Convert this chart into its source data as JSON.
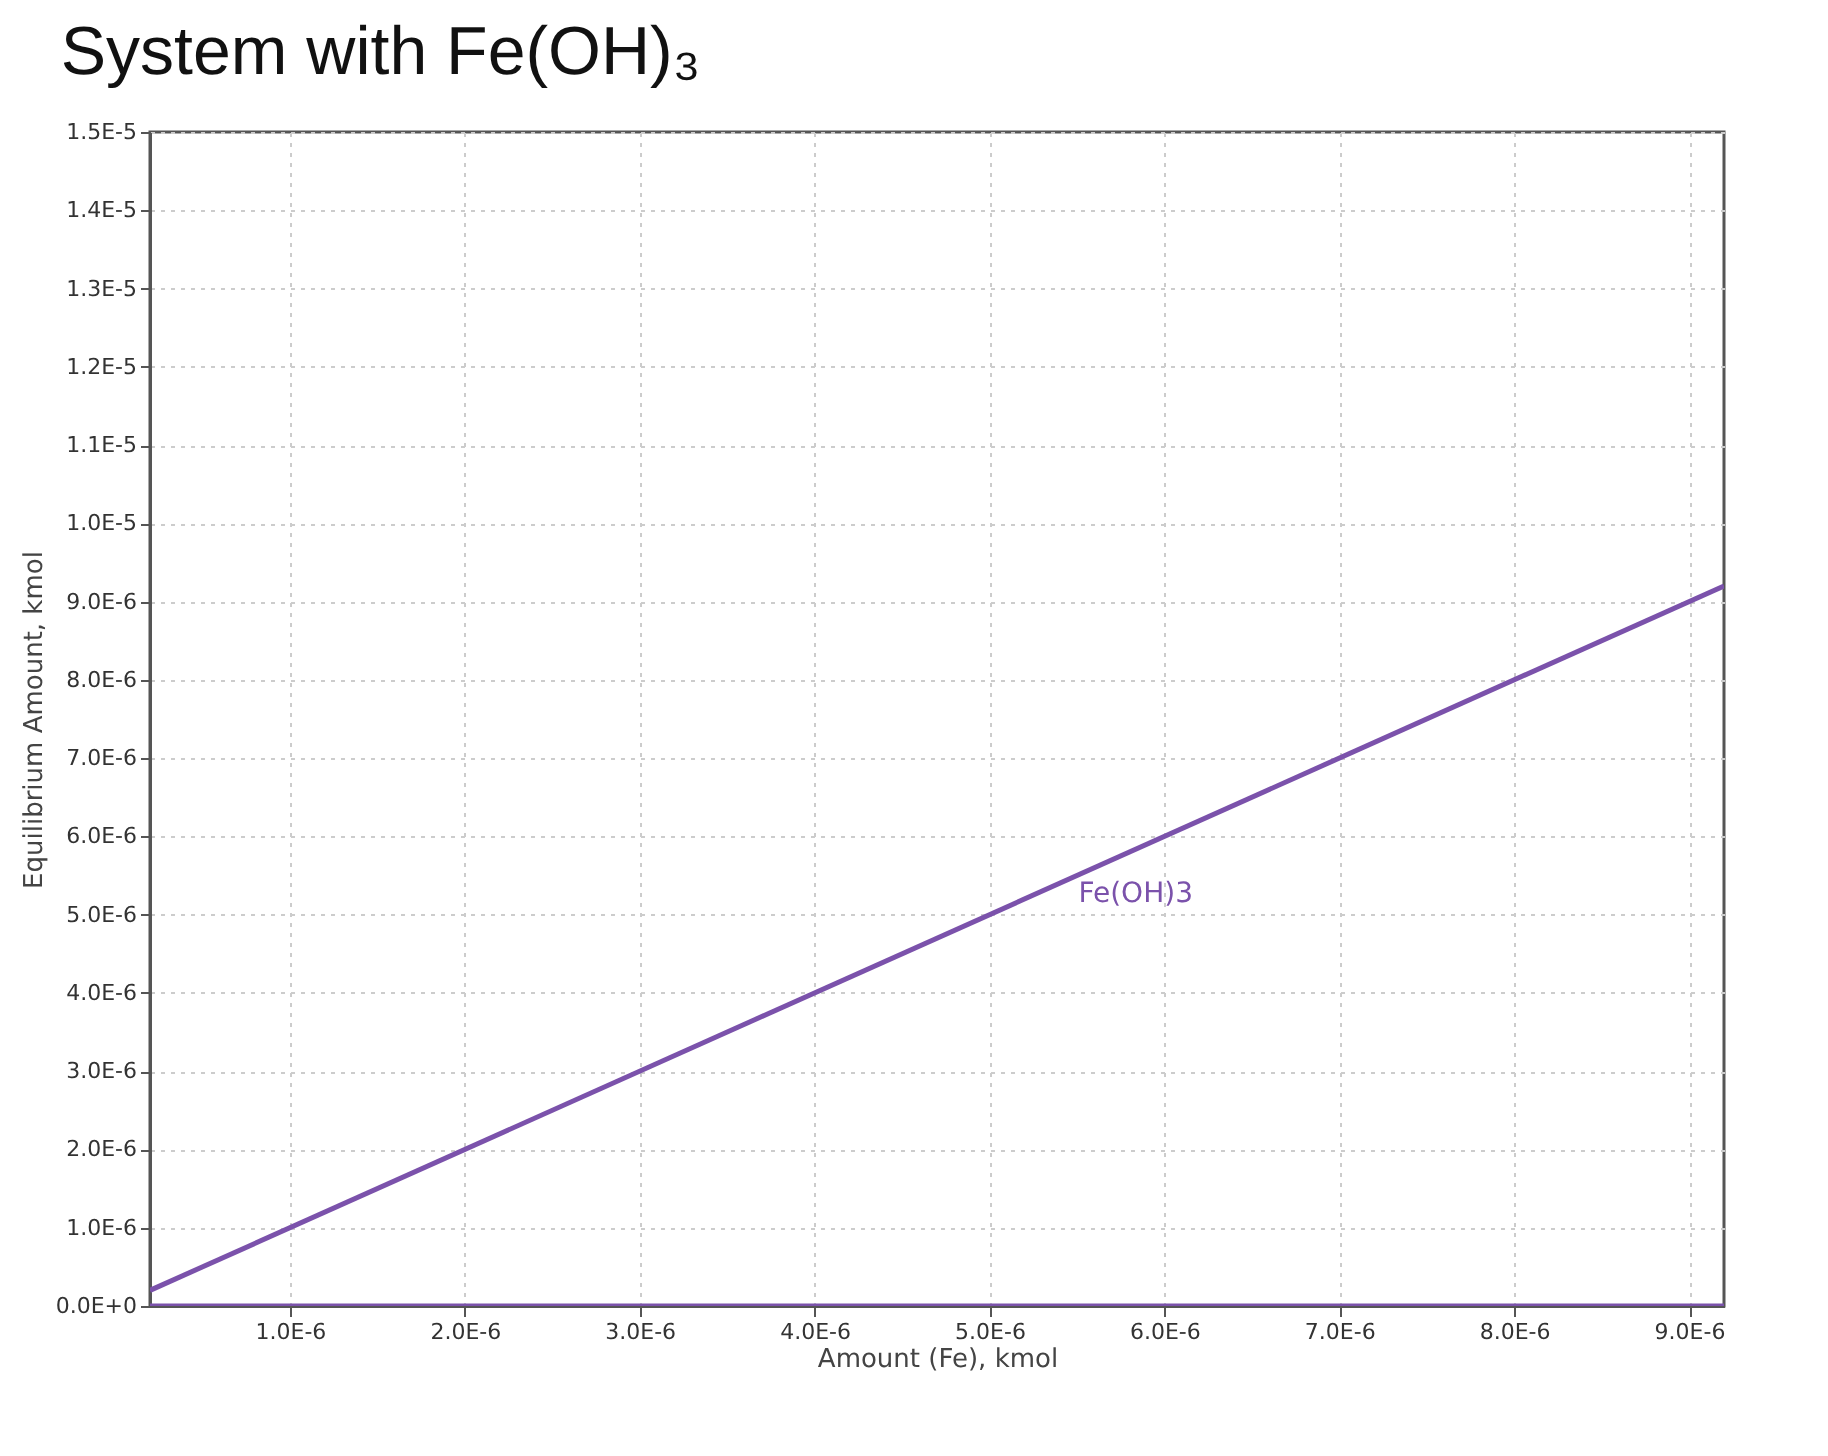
{
  "chart_data": {
    "type": "line",
    "title": "System with Fe(OH)₃",
    "xlabel": "Amount (Fe), kmol",
    "ylabel": "Equilibrium Amount, kmol",
    "x": [
      2e-07,
      9.2e-06
    ],
    "series": [
      {
        "name": "Fe(OH)3",
        "color": "#7b52ab",
        "values": [
          2e-07,
          9.2e-06
        ]
      },
      {
        "color": "#7b52ab",
        "values": [
          0,
          0
        ]
      }
    ],
    "xlim": [
      2e-07,
      9.2e-06
    ],
    "xticks": [
      {
        "value": 1e-06,
        "label": "1.0E-6"
      },
      {
        "value": 2e-06,
        "label": "2.0E-6"
      },
      {
        "value": 3e-06,
        "label": "3.0E-6"
      },
      {
        "value": 4e-06,
        "label": "4.0E-6"
      },
      {
        "value": 5e-06,
        "label": "5.0E-6"
      },
      {
        "value": 6e-06,
        "label": "6.0E-6"
      },
      {
        "value": 7e-06,
        "label": "7.0E-6"
      },
      {
        "value": 8e-06,
        "label": "8.0E-6"
      },
      {
        "value": 9e-06,
        "label": "9.0E-6"
      }
    ],
    "ylim": [
      0,
      1.5e-05
    ],
    "yticks": [
      {
        "value": 0,
        "label": "0.0E+0"
      },
      {
        "value": 1e-06,
        "label": "1.0E-6"
      },
      {
        "value": 2e-06,
        "label": "2.0E-6"
      },
      {
        "value": 3e-06,
        "label": "3.0E-6"
      },
      {
        "value": 4e-06,
        "label": "4.0E-6"
      },
      {
        "value": 5e-06,
        "label": "5.0E-6"
      },
      {
        "value": 6e-06,
        "label": "6.0E-6"
      },
      {
        "value": 7e-06,
        "label": "7.0E-6"
      },
      {
        "value": 8e-06,
        "label": "8.0E-6"
      },
      {
        "value": 9e-06,
        "label": "9.0E-6"
      },
      {
        "value": 1e-05,
        "label": "1.0E-5"
      },
      {
        "value": 1.1e-05,
        "label": "1.1E-5"
      },
      {
        "value": 1.2e-05,
        "label": "1.2E-5"
      },
      {
        "value": 1.3e-05,
        "label": "1.3E-5"
      },
      {
        "value": 1.4e-05,
        "label": "1.4E-5"
      },
      {
        "value": 1.5e-05,
        "label": "1.5E-5"
      }
    ],
    "grid": true,
    "marker": "none",
    "line_style": "solid"
  }
}
